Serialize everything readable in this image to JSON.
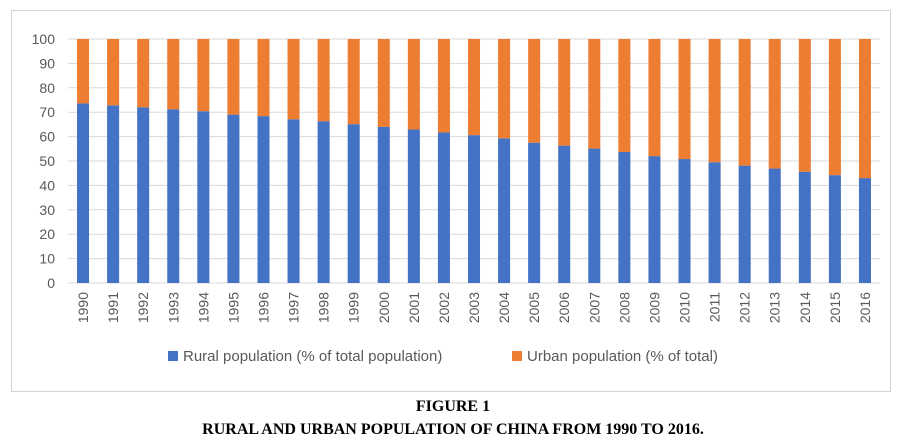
{
  "chart_data": {
    "type": "bar",
    "stacked": true,
    "categories": [
      "1990",
      "1991",
      "1992",
      "1993",
      "1994",
      "1995",
      "1996",
      "1997",
      "1998",
      "1999",
      "2000",
      "2001",
      "2002",
      "2003",
      "2004",
      "2005",
      "2006",
      "2007",
      "2008",
      "2009",
      "2010",
      "2011",
      "2012",
      "2013",
      "2014",
      "2015",
      "2016"
    ],
    "series": [
      {
        "name": "Rural population (% of total population)",
        "color": "#4472c4",
        "values": [
          73.6,
          72.8,
          72.0,
          71.2,
          70.4,
          69.0,
          68.4,
          67.1,
          66.3,
          65.1,
          64.0,
          62.9,
          61.7,
          60.6,
          59.3,
          57.5,
          56.3,
          55.1,
          53.7,
          52.0,
          50.8,
          49.5,
          48.1,
          46.9,
          45.6,
          44.2,
          43.0
        ]
      },
      {
        "name": "Urban population (% of total)",
        "color": "#ed7d31",
        "values": [
          26.4,
          27.2,
          28.0,
          28.8,
          29.6,
          31.0,
          31.6,
          32.9,
          33.7,
          34.9,
          36.0,
          37.1,
          38.3,
          39.4,
          40.7,
          42.5,
          43.7,
          44.9,
          46.3,
          48.0,
          49.2,
          50.5,
          51.9,
          53.1,
          54.4,
          55.8,
          57.0
        ]
      }
    ],
    "ylim": [
      0,
      100
    ],
    "yticks": [
      0,
      10,
      20,
      30,
      40,
      50,
      60,
      70,
      80,
      90,
      100
    ],
    "grid": true,
    "legend": "bottom",
    "xlabel": "",
    "ylabel": ""
  },
  "caption": {
    "line1": "FIGURE 1",
    "line2": "RURAL AND URBAN POPULATION OF CHINA FROM 1990 TO 2016."
  }
}
